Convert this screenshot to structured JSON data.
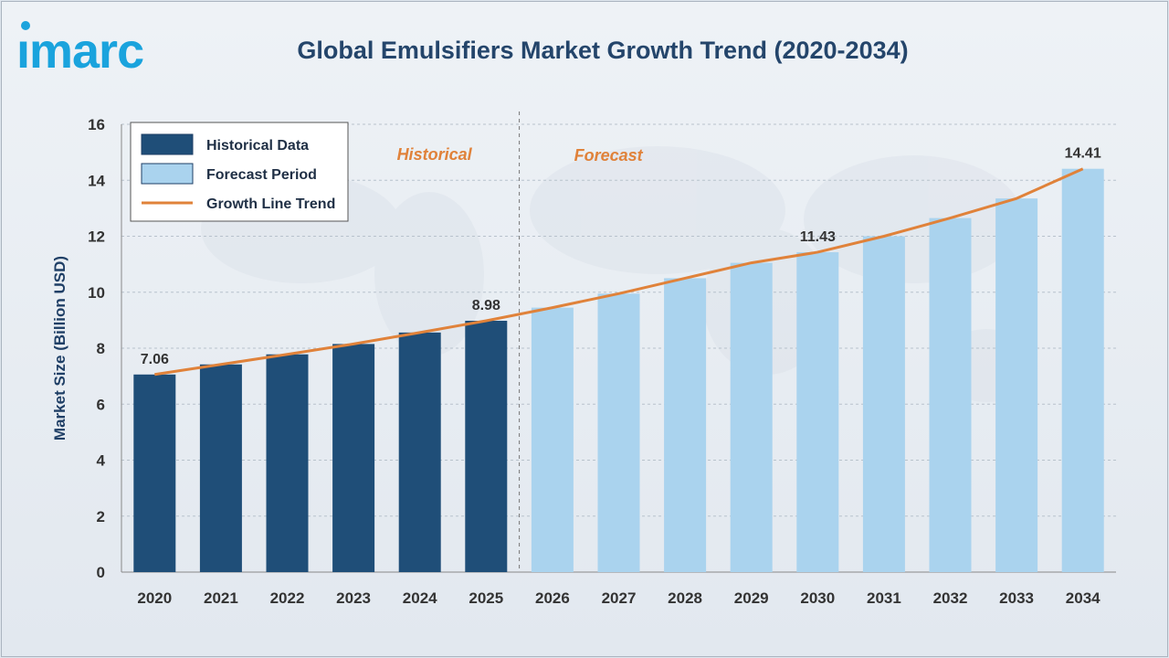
{
  "brand": {
    "logo_text": "imarc",
    "accent": "#1aa3dd"
  },
  "title": "Global Emulsifiers Market Growth Trend (2020-2034)",
  "colors": {
    "historical_bar": "#1f4e78",
    "forecast_bar": "#aad3ee",
    "trend_line": "#e0823a",
    "phase_label": "#e0823a"
  },
  "chart_data": {
    "type": "bar",
    "title": "Global Emulsifiers Market Growth Trend (2020-2034)",
    "xlabel": "",
    "ylabel": "Market Size (Billion USD)",
    "ylim": [
      0,
      16
    ],
    "yticks": [
      0,
      2,
      4,
      6,
      8,
      10,
      12,
      14,
      16
    ],
    "grid": "horizontal dashed",
    "legend_position": "top-left",
    "categories": [
      "2020",
      "2021",
      "2022",
      "2023",
      "2024",
      "2025",
      "2026",
      "2027",
      "2028",
      "2029",
      "2030",
      "2031",
      "2032",
      "2033",
      "2034"
    ],
    "values": [
      7.06,
      7.42,
      7.78,
      8.15,
      8.56,
      8.98,
      9.45,
      9.95,
      10.5,
      11.05,
      11.43,
      12.0,
      12.65,
      13.35,
      14.41
    ],
    "series": [
      {
        "name": "Historical Data",
        "type": "bar",
        "categories": [
          "2020",
          "2021",
          "2022",
          "2023",
          "2024",
          "2025"
        ]
      },
      {
        "name": "Forecast Period",
        "type": "bar",
        "categories": [
          "2026",
          "2027",
          "2028",
          "2029",
          "2030",
          "2031",
          "2032",
          "2033",
          "2034"
        ]
      },
      {
        "name": "Growth Line Trend",
        "type": "line",
        "values": [
          7.06,
          7.42,
          7.78,
          8.15,
          8.56,
          8.98,
          9.45,
          9.95,
          10.5,
          11.05,
          11.43,
          12.0,
          12.65,
          13.35,
          14.41
        ]
      }
    ],
    "data_labels": [
      {
        "category": "2020",
        "text": "7.06"
      },
      {
        "category": "2025",
        "text": "8.98"
      },
      {
        "category": "2030",
        "text": "11.43"
      },
      {
        "category": "2034",
        "text": "14.41"
      }
    ],
    "phase_labels": {
      "historical": "Historical",
      "forecast": "Forecast"
    },
    "divider_after": "2025"
  }
}
